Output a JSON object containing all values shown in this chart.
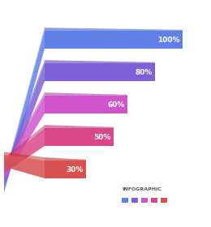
{
  "bars": [
    {
      "label": "100%",
      "value": 100,
      "color": "#6080E8",
      "dark_color": "#4060C8"
    },
    {
      "label": "80%",
      "value": 80,
      "color": "#8060D8",
      "dark_color": "#6040B8"
    },
    {
      "label": "60%",
      "value": 60,
      "color": "#D055CC",
      "dark_color": "#B040AA"
    },
    {
      "label": "50%",
      "value": 50,
      "color": "#D84888",
      "dark_color": "#B83068"
    },
    {
      "label": "30%",
      "value": 30,
      "color": "#D85050",
      "dark_color": "#B83030"
    }
  ],
  "background_color": "#ffffff",
  "text_color": "#ffffff",
  "label_fontsize": 6.5,
  "legend_text": "INFOGRAPHIC",
  "legend_colors": [
    "#6080E8",
    "#8060D8",
    "#D055CC",
    "#D84888",
    "#D85050"
  ]
}
